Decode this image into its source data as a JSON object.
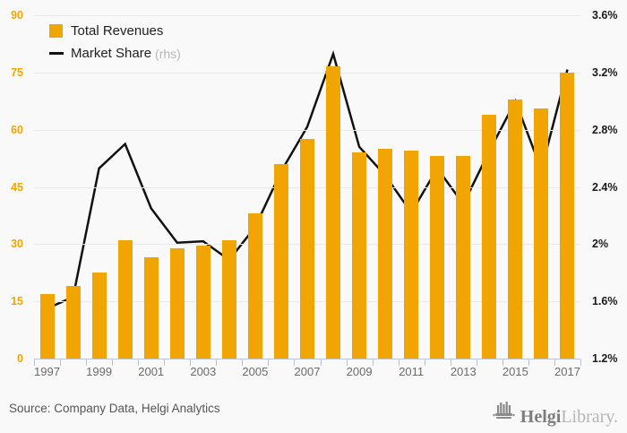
{
  "legend": {
    "items": [
      {
        "label": "Total Revenues",
        "suffix": "",
        "swatch": "square"
      },
      {
        "label": "Market Share",
        "suffix": "(rhs)",
        "swatch": "line"
      }
    ]
  },
  "chart_data": {
    "type": "bar",
    "title": "",
    "categories": [
      "1997",
      "1998",
      "1999",
      "2000",
      "2001",
      "2002",
      "2003",
      "2004",
      "2005",
      "2006",
      "2007",
      "2008",
      "2009",
      "2010",
      "2011",
      "2012",
      "2013",
      "2014",
      "2015",
      "2016",
      "2017"
    ],
    "series": [
      {
        "name": "Total Revenues",
        "type": "bar",
        "axis": "left",
        "color": "#F0A502",
        "values": [
          17,
          19,
          22.5,
          31,
          26.5,
          29,
          29.5,
          31,
          38,
          51,
          57.5,
          76.5,
          54,
          55,
          54.5,
          53,
          53,
          64,
          68,
          65.5,
          75
        ]
      },
      {
        "name": "Market Share (rhs)",
        "type": "line",
        "axis": "right",
        "color": "#111111",
        "values": [
          1.55,
          1.63,
          2.53,
          2.7,
          2.25,
          2.01,
          2.02,
          1.89,
          2.12,
          2.51,
          2.82,
          3.33,
          2.68,
          2.48,
          2.22,
          2.53,
          2.28,
          2.65,
          3.0,
          2.52,
          3.22
        ]
      }
    ],
    "left_axis": {
      "range": [
        0,
        90
      ],
      "ticks": [
        0,
        15,
        30,
        45,
        60,
        75,
        90
      ]
    },
    "right_axis": {
      "range": [
        1.2,
        3.6
      ],
      "ticks": [
        1.2,
        1.6,
        2.0,
        2.4,
        2.8,
        3.2,
        3.6
      ],
      "tick_labels": [
        "1.2%",
        "1.6%",
        "2%",
        "2.4%",
        "2.8%",
        "3.2%",
        "3.6%"
      ]
    },
    "x_tick_labels": [
      "1997",
      "1999",
      "2001",
      "2003",
      "2005",
      "2007",
      "2009",
      "2011",
      "2013",
      "2015",
      "2017"
    ],
    "grid": true,
    "legend_position": "top-left"
  },
  "footer": {
    "source": "Source: Company Data, Helgi Analytics",
    "logo_name": "Helgi",
    "logo_suffix": "Library."
  },
  "colors": {
    "bar_gold": "#F0A502",
    "line_black": "#111111",
    "grid": "#e9e9e9",
    "axis": "#b9c3da",
    "background": "#f9f9f9",
    "x_label": "#6b6b6b",
    "source_text": "#555555",
    "rhs_suffix": "#b8b8b8",
    "logo_dark": "#7d7d7d",
    "logo_light": "#b5b5b5"
  }
}
